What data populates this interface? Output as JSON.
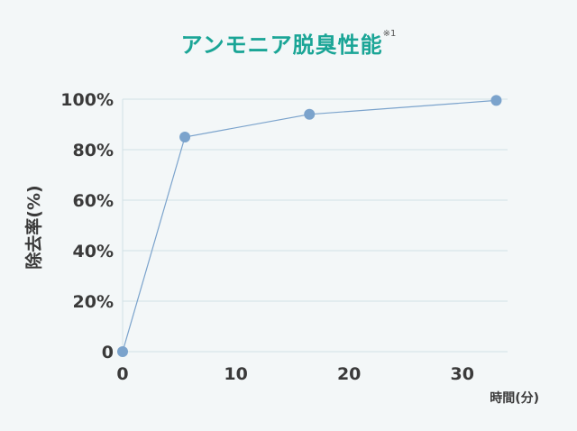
{
  "title": {
    "text": "アンモニア脱臭性能",
    "note": "※1"
  },
  "colors": {
    "title": "#1aa596",
    "series": "#7ba3cc",
    "grid": "#d2e0e6",
    "text": "#3a3a3a"
  },
  "chart_data": {
    "type": "line",
    "title": "アンモニア脱臭性能",
    "xlabel": "時間(分)",
    "ylabel": "除去率(%)",
    "xlim": [
      0,
      34
    ],
    "ylim": [
      0,
      100
    ],
    "x_ticks": [
      0,
      10,
      20,
      30
    ],
    "y_ticks": [
      {
        "value": 0,
        "label": "0"
      },
      {
        "value": 20,
        "label": "20%"
      },
      {
        "value": 40,
        "label": "40%"
      },
      {
        "value": 60,
        "label": "60%"
      },
      {
        "value": 80,
        "label": "80%"
      },
      {
        "value": 100,
        "label": "100%"
      }
    ],
    "grid": true,
    "legend": "none",
    "series": [
      {
        "x": [
          0,
          5.5,
          16.5,
          33
        ],
        "y": [
          0,
          85,
          94,
          99.5
        ]
      }
    ]
  }
}
